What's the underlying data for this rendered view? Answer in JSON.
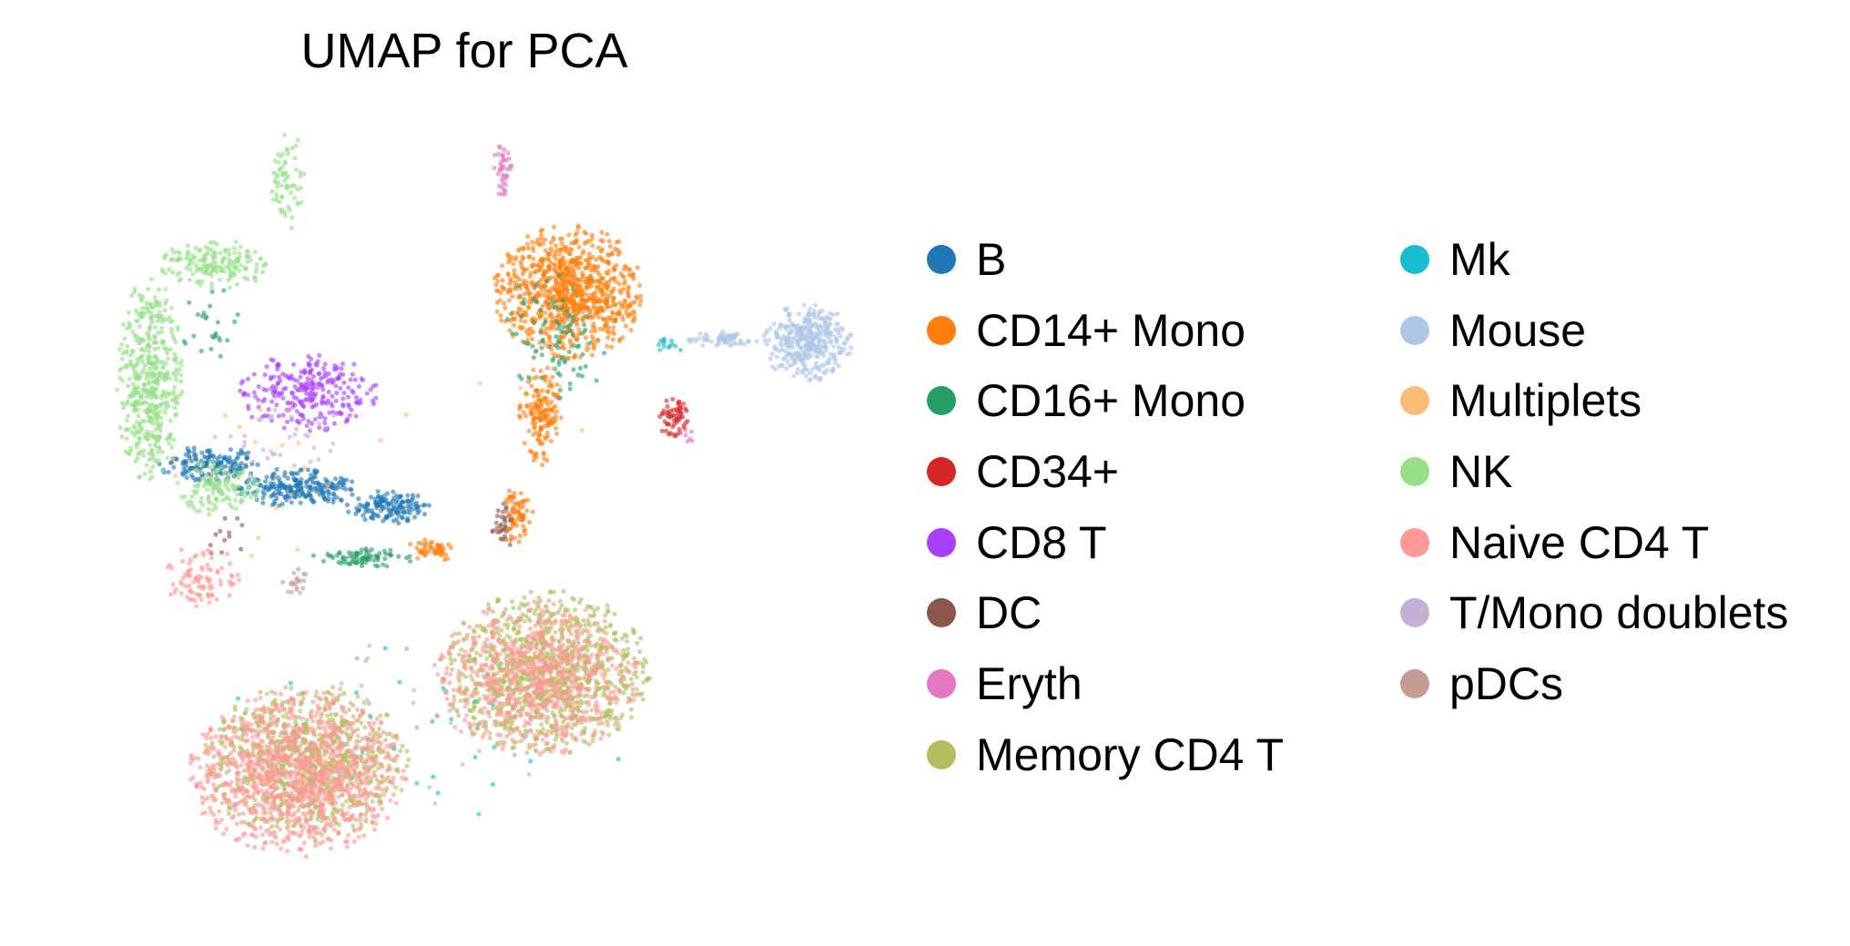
{
  "chart_data": {
    "type": "scatter",
    "title": "UMAP for PCA",
    "xlabel": "",
    "ylabel": "",
    "axes_visible": false,
    "grid": false,
    "legend_position": "right",
    "legend_columns": 2,
    "marker_alpha": 0.6,
    "series": [
      {
        "name": "B",
        "color": "#1f77b4",
        "clusters": [
          {
            "cx": 3.2,
            "cy": 4.3,
            "rx": 1.1,
            "ry": 0.35,
            "n": 160
          },
          {
            "cx": 5.0,
            "cy": 3.9,
            "rx": 1.3,
            "ry": 0.35,
            "n": 220
          },
          {
            "cx": 6.9,
            "cy": 3.55,
            "rx": 0.9,
            "ry": 0.3,
            "n": 140
          }
        ]
      },
      {
        "name": "CD14+ Mono",
        "color": "#ff7f0e",
        "clusters": [
          {
            "cx": 10.7,
            "cy": 7.4,
            "rx": 1.6,
            "ry": 1.2,
            "n": 900
          },
          {
            "cx": 10.1,
            "cy": 5.2,
            "rx": 0.45,
            "ry": 0.9,
            "n": 160
          },
          {
            "cx": 9.6,
            "cy": 3.4,
            "rx": 0.35,
            "ry": 0.5,
            "n": 70
          },
          {
            "cx": 7.8,
            "cy": 2.8,
            "rx": 0.55,
            "ry": 0.22,
            "n": 50
          }
        ]
      },
      {
        "name": "CD16+ Mono",
        "color": "#279e68",
        "clusters": [
          {
            "cx": 10.4,
            "cy": 6.6,
            "rx": 1.1,
            "ry": 1.3,
            "n": 90
          },
          {
            "cx": 6.4,
            "cy": 2.65,
            "rx": 1.1,
            "ry": 0.22,
            "n": 80
          },
          {
            "cx": 3.2,
            "cy": 6.7,
            "rx": 0.8,
            "ry": 1.2,
            "n": 25
          }
        ]
      },
      {
        "name": "CD34+",
        "color": "#d62728",
        "clusters": [
          {
            "cx": 12.9,
            "cy": 5.15,
            "rx": 0.35,
            "ry": 0.35,
            "n": 60
          }
        ]
      },
      {
        "name": "CD8 T",
        "color": "#aa40fc",
        "clusters": [
          {
            "cx": 5.2,
            "cy": 5.6,
            "rx": 1.5,
            "ry": 0.7,
            "n": 260
          }
        ]
      },
      {
        "name": "DC",
        "color": "#8c564b",
        "clusters": [
          {
            "cx": 9.3,
            "cy": 3.2,
            "rx": 0.25,
            "ry": 0.45,
            "n": 30
          },
          {
            "cx": 3.5,
            "cy": 3.0,
            "rx": 0.5,
            "ry": 0.4,
            "n": 12
          }
        ]
      },
      {
        "name": "Eryth",
        "color": "#e377c2",
        "clusters": [
          {
            "cx": 9.3,
            "cy": 9.55,
            "rx": 0.2,
            "ry": 0.55,
            "n": 40
          },
          {
            "cx": 13.2,
            "cy": 4.8,
            "rx": 0.1,
            "ry": 0.2,
            "n": 6
          }
        ]
      },
      {
        "name": "Memory CD4 T",
        "color": "#b5bd61",
        "clusters": [
          {
            "cx": 10.2,
            "cy": 0.6,
            "rx": 2.2,
            "ry": 1.5,
            "n": 1100
          },
          {
            "cx": 5.2,
            "cy": -1.0,
            "rx": 2.2,
            "ry": 1.4,
            "n": 900
          }
        ]
      },
      {
        "name": "Mk",
        "color": "#17becf",
        "clusters": [
          {
            "cx": 12.8,
            "cy": 6.45,
            "rx": 0.3,
            "ry": 0.15,
            "n": 14
          },
          {
            "cx": 7.5,
            "cy": -0.5,
            "rx": 4.5,
            "ry": 2.0,
            "n": 25
          }
        ]
      },
      {
        "name": "Mouse",
        "color": "#aec7e8",
        "clusters": [
          {
            "cx": 15.7,
            "cy": 6.5,
            "rx": 0.95,
            "ry": 0.7,
            "n": 360
          },
          {
            "cx": 13.9,
            "cy": 6.55,
            "rx": 0.8,
            "ry": 0.15,
            "n": 60
          }
        ]
      },
      {
        "name": "Multiplets",
        "color": "#ffbb78",
        "clusters": [
          {
            "cx": 5.0,
            "cy": 4.5,
            "rx": 3.0,
            "ry": 2.0,
            "n": 20
          },
          {
            "cx": 10.0,
            "cy": 6.0,
            "rx": 1.5,
            "ry": 1.5,
            "n": 15
          }
        ]
      },
      {
        "name": "NK",
        "color": "#98df8a",
        "clusters": [
          {
            "cx": 1.9,
            "cy": 5.8,
            "rx": 0.7,
            "ry": 1.9,
            "n": 480
          },
          {
            "cx": 3.3,
            "cy": 7.9,
            "rx": 1.2,
            "ry": 0.45,
            "n": 170
          },
          {
            "cx": 4.8,
            "cy": 9.4,
            "rx": 0.35,
            "ry": 0.9,
            "n": 70
          },
          {
            "cx": 3.3,
            "cy": 3.9,
            "rx": 0.9,
            "ry": 0.5,
            "n": 130
          }
        ]
      },
      {
        "name": "Naive CD4 T",
        "color": "#ff9896",
        "clusters": [
          {
            "cx": 5.0,
            "cy": -1.2,
            "rx": 2.3,
            "ry": 1.5,
            "n": 1100
          },
          {
            "cx": 10.0,
            "cy": 0.5,
            "rx": 2.2,
            "ry": 1.4,
            "n": 700
          },
          {
            "cx": 3.0,
            "cy": 2.3,
            "rx": 0.8,
            "ry": 0.6,
            "n": 90
          }
        ]
      },
      {
        "name": "T/Mono doublets",
        "color": "#c5b0d5",
        "clusters": [
          {
            "cx": 4.5,
            "cy": 4.8,
            "rx": 1.5,
            "ry": 0.8,
            "n": 35
          },
          {
            "cx": 7.5,
            "cy": -0.3,
            "rx": 4.0,
            "ry": 1.8,
            "n": 25
          }
        ]
      },
      {
        "name": "pDCs",
        "color": "#c49c94",
        "clusters": [
          {
            "cx": 5.0,
            "cy": 2.2,
            "rx": 0.35,
            "ry": 0.25,
            "n": 20
          },
          {
            "cx": 7.5,
            "cy": 0.0,
            "rx": 3.5,
            "ry": 1.5,
            "n": 15
          }
        ]
      }
    ],
    "xlim": [
      0,
      17
    ],
    "ylim": [
      -3.5,
      10.5
    ]
  }
}
